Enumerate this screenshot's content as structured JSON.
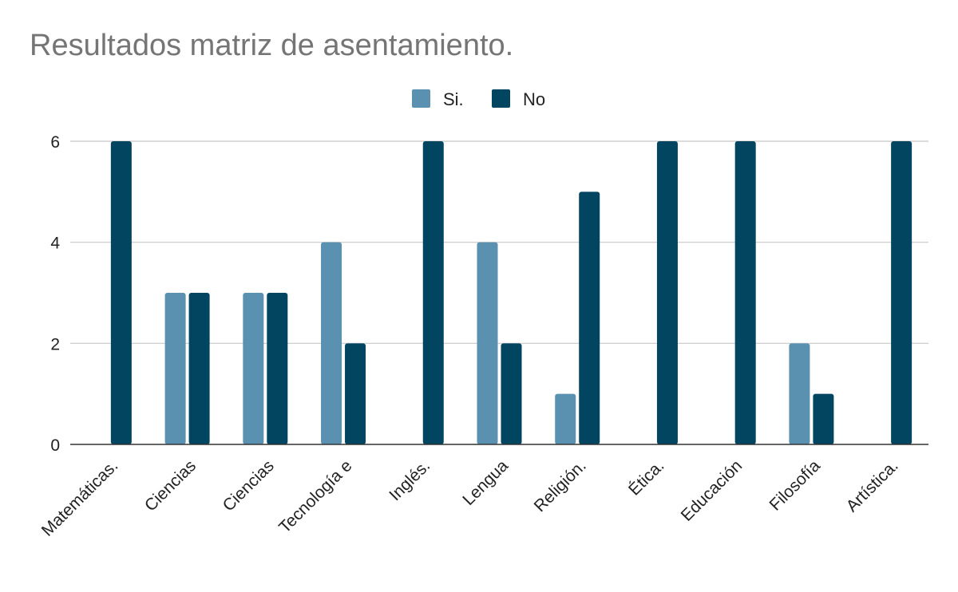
{
  "chart_data": {
    "type": "bar",
    "title": "Resultados matriz de asentamiento.",
    "xlabel": "",
    "ylabel": "",
    "categories": [
      "Matemáticas.",
      "Ciencias",
      "Ciencias",
      "Tecnología e",
      "Inglés.",
      "Lengua",
      "Religión.",
      "Ética.",
      "Educación",
      "Filosofía",
      "Artística."
    ],
    "series": [
      {
        "name": "Si.",
        "color": "#5b91b0",
        "values": [
          0,
          3,
          3,
          4,
          0,
          4,
          1,
          0,
          0,
          2,
          0
        ]
      },
      {
        "name": "No",
        "color": "#024561",
        "values": [
          6,
          3,
          3,
          2,
          6,
          2,
          5,
          6,
          6,
          1,
          6
        ]
      }
    ],
    "ylim": [
      0,
      6
    ],
    "yticks": [
      0,
      2,
      4,
      6
    ],
    "grid": true,
    "legend_position": "top-center"
  }
}
